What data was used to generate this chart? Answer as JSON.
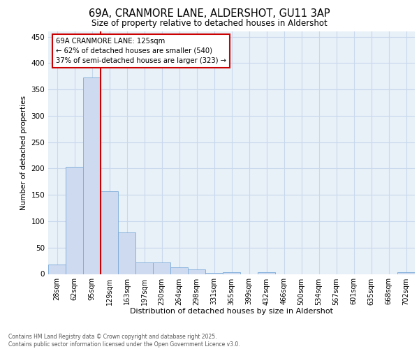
{
  "title_line1": "69A, CRANMORE LANE, ALDERSHOT, GU11 3AP",
  "title_line2": "Size of property relative to detached houses in Aldershot",
  "xlabel": "Distribution of detached houses by size in Aldershot",
  "ylabel": "Number of detached properties",
  "bar_labels": [
    "28sqm",
    "62sqm",
    "95sqm",
    "129sqm",
    "163sqm",
    "197sqm",
    "230sqm",
    "264sqm",
    "298sqm",
    "331sqm",
    "365sqm",
    "399sqm",
    "432sqm",
    "466sqm",
    "500sqm",
    "534sqm",
    "567sqm",
    "601sqm",
    "635sqm",
    "668sqm",
    "702sqm"
  ],
  "bar_values": [
    18,
    203,
    373,
    157,
    79,
    22,
    22,
    13,
    8,
    2,
    3,
    0,
    3,
    0,
    0,
    0,
    0,
    0,
    0,
    0,
    3
  ],
  "bar_color": "#cddaf0",
  "bar_edge_color": "#7aaad8",
  "vline_index": 2.5,
  "annotation_line1": "69A CRANMORE LANE: 125sqm",
  "annotation_line2": "← 62% of detached houses are smaller (540)",
  "annotation_line3": "37% of semi-detached houses are larger (323) →",
  "annotation_box_color": "#ffffff",
  "annotation_box_edge_color": "#cc0000",
  "vline_color": "#cc0000",
  "ylim": [
    0,
    460
  ],
  "yticks": [
    0,
    50,
    100,
    150,
    200,
    250,
    300,
    350,
    400,
    450
  ],
  "grid_color": "#c8d8ec",
  "background_color": "#e8f0f8",
  "footer_line1": "Contains HM Land Registry data © Crown copyright and database right 2025.",
  "footer_line2": "Contains public sector information licensed under the Open Government Licence v3.0."
}
